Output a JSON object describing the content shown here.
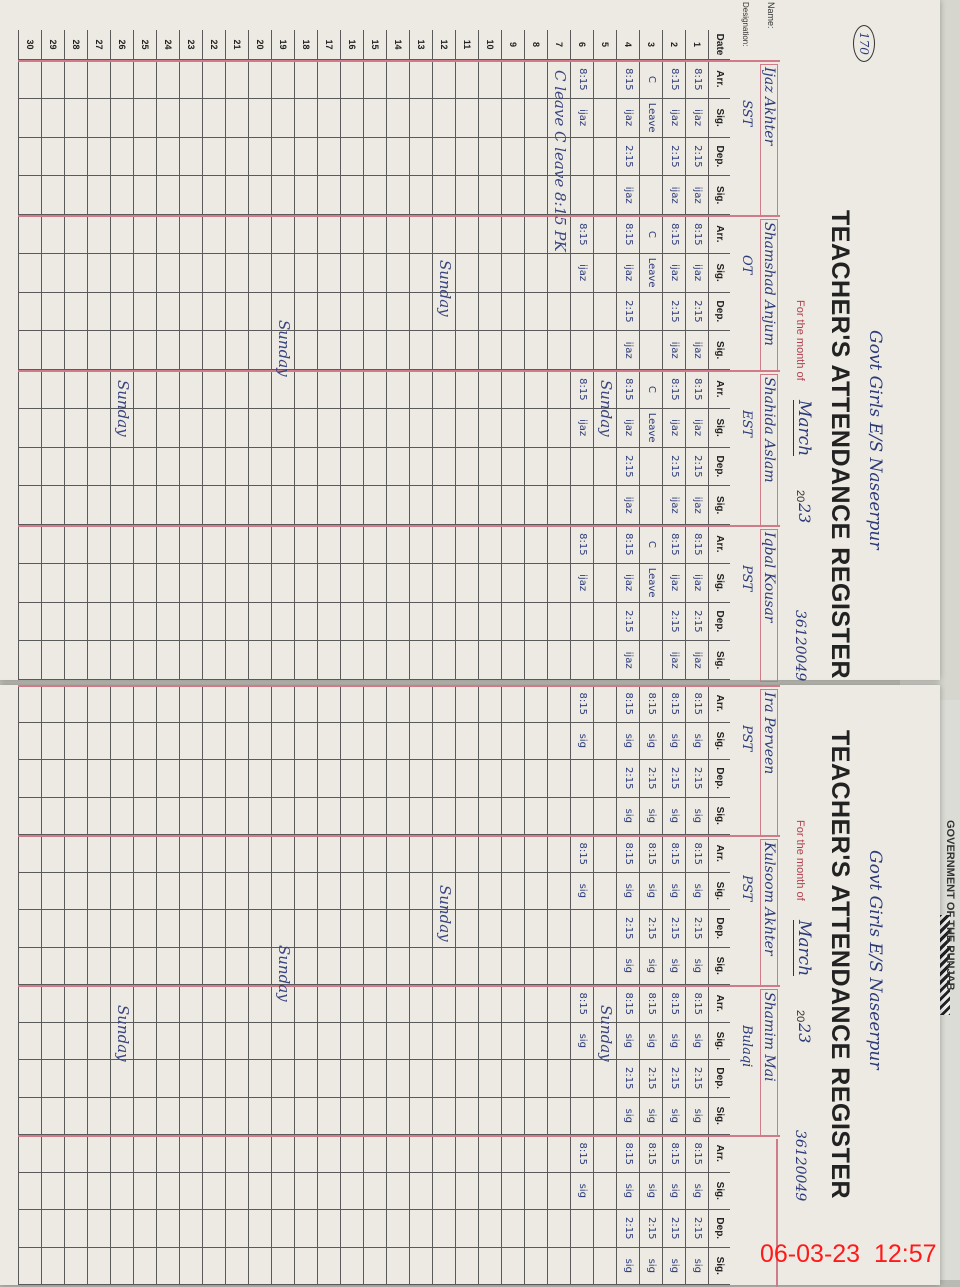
{
  "register": {
    "title": "TEACHER'S ATTENDANCE REGISTER",
    "school_handwritten": "Govt Girls E/S Naseerpur",
    "school_code": "36120049",
    "page_number": "170",
    "month_label": "For the month of",
    "month": "March",
    "year_prefix": "20",
    "year_suffix": "23",
    "name_label": "Name:",
    "designation_label": "Designation:",
    "date_header": "Date",
    "col_headers": [
      "Arr.",
      "Sig.",
      "Dep.",
      "Sig."
    ],
    "background_text": "GOVERNMENT OF THE PUNJAB"
  },
  "pages": [
    {
      "teachers": [
        {
          "name": "Ijaz Akhter",
          "designation": "SST"
        },
        {
          "name": "Shamshad Anjum",
          "designation": "OT"
        },
        {
          "name": "Shahida Aslam",
          "designation": "EST"
        },
        {
          "name": "Iqbal Kousar",
          "designation": "PST"
        }
      ],
      "entries": {
        "1": [
          "8:15",
          "ijaz",
          "2:15",
          "ijaz"
        ],
        "2": [
          "8:15",
          "ijaz",
          "2:15",
          "ijaz"
        ],
        "3": [
          "C",
          "Leave",
          "",
          ""
        ],
        "4": [
          "8:15",
          "ijaz",
          "2:15",
          "ijaz"
        ],
        "6": [
          "8:15",
          "ijaz",
          "",
          ""
        ]
      },
      "notes": [
        {
          "day": 5,
          "text": "Sunday"
        },
        {
          "day": 7,
          "text": "C leave   C leave   8:15 PK"
        },
        {
          "day": 12,
          "text": "Sunday"
        },
        {
          "day": 19,
          "text": "Sunday"
        },
        {
          "day": 26,
          "text": "Sunday"
        }
      ]
    },
    {
      "teachers": [
        {
          "name": "Ira Perveen",
          "designation": "PST"
        },
        {
          "name": "Kulsoom Akhter",
          "designation": "PST"
        },
        {
          "name": "Shamim Mai",
          "designation": "Bulaqi"
        },
        {
          "name": "",
          "designation": ""
        }
      ],
      "entries": {
        "1": [
          "8:15",
          "sig",
          "2:15",
          "sig"
        ],
        "2": [
          "8:15",
          "sig",
          "2:15",
          "sig"
        ],
        "3": [
          "8:15",
          "sig",
          "2:15",
          "sig"
        ],
        "4": [
          "8:15",
          "sig",
          "2:15",
          "sig"
        ],
        "6": [
          "8:15",
          "sig",
          "",
          ""
        ]
      },
      "notes": [
        {
          "day": 5,
          "text": "Sunday"
        },
        {
          "day": 12,
          "text": "Sunday"
        },
        {
          "day": 19,
          "text": "Sunday"
        },
        {
          "day": 26,
          "text": "Sunday"
        }
      ]
    }
  ],
  "days": 30,
  "timestamp": "06-03-23  12:57",
  "colors": {
    "ink": "#2c3a7a",
    "rule": "#cf7b8a",
    "stamp": "#ff1a1a"
  }
}
